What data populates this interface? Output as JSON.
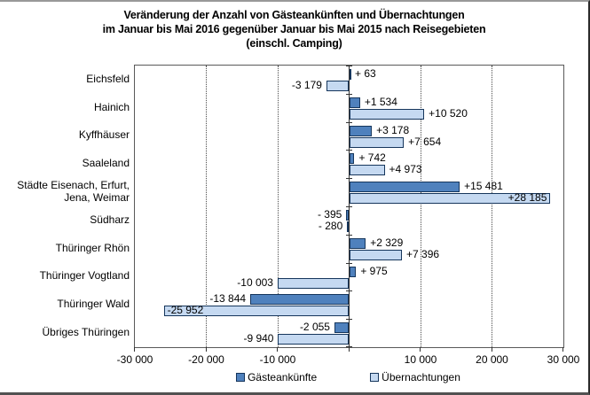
{
  "title": {
    "lines": [
      "Veränderung der Anzahl von Gästeankünften und Übernachtungen",
      "im Januar bis Mai 2016 gegenüber Januar bis Mai 2015 nach Reisegebieten",
      "(einschl. Camping)"
    ]
  },
  "chart_data": {
    "type": "bar",
    "orientation": "horizontal",
    "title": "Veränderung der Anzahl von Gästeankünften und Übernachtungen im Januar bis Mai 2016 gegenüber Januar bis Mai 2015 nach Reisegebieten (einschl. Camping)",
    "categories": [
      "Eichsfeld",
      "Hainich",
      "Kyffhäuser",
      "Saaleland",
      "Städte Eisenach, Erfurt,\nJena, Weimar",
      "Südharz",
      "Thüringer Rhön",
      "Thüringer Vogtland",
      "Thüringer Wald",
      "Übriges Thüringen"
    ],
    "series": [
      {
        "name": "Gästeankünfte",
        "color": "#4f81bd",
        "border_color": "#16365c",
        "values": [
          63,
          1534,
          3178,
          742,
          15481,
          -395,
          2329,
          975,
          -13844,
          -2055
        ],
        "labels": [
          "+ 63",
          "+1 534",
          "+3 178",
          "+ 742",
          "+15 481",
          "- 395",
          "+2 329",
          "+ 975",
          "-13 844",
          "-2 055"
        ],
        "label_inside": [
          false,
          false,
          false,
          false,
          false,
          false,
          false,
          false,
          false,
          false
        ]
      },
      {
        "name": "Übernachtungen",
        "color": "#c5d9f1",
        "border_color": "#16365c",
        "values": [
          -3179,
          10520,
          7654,
          4973,
          28185,
          -280,
          7396,
          -10003,
          -25952,
          -9940
        ],
        "labels": [
          "-3 179",
          "+10 520",
          "+7 654",
          "+4 973",
          "+28 185",
          "- 280",
          "+7 396",
          "-10 003",
          "-25 952",
          "-9 940"
        ],
        "label_inside": [
          false,
          false,
          false,
          false,
          true,
          false,
          false,
          false,
          true,
          false
        ]
      }
    ],
    "xlim": [
      -30000,
      30000
    ],
    "xticks": [
      {
        "value": -30000,
        "label": "-30 000"
      },
      {
        "value": -20000,
        "label": "-20 000"
      },
      {
        "value": -10000,
        "label": "-10 000"
      },
      {
        "value": 0,
        "label": ""
      },
      {
        "value": 10000,
        "label": "10 000"
      },
      {
        "value": 20000,
        "label": "20 000"
      },
      {
        "value": 30000,
        "label": "30 000"
      }
    ],
    "grid": "vertical-dotted",
    "legend_position": "bottom-center"
  }
}
